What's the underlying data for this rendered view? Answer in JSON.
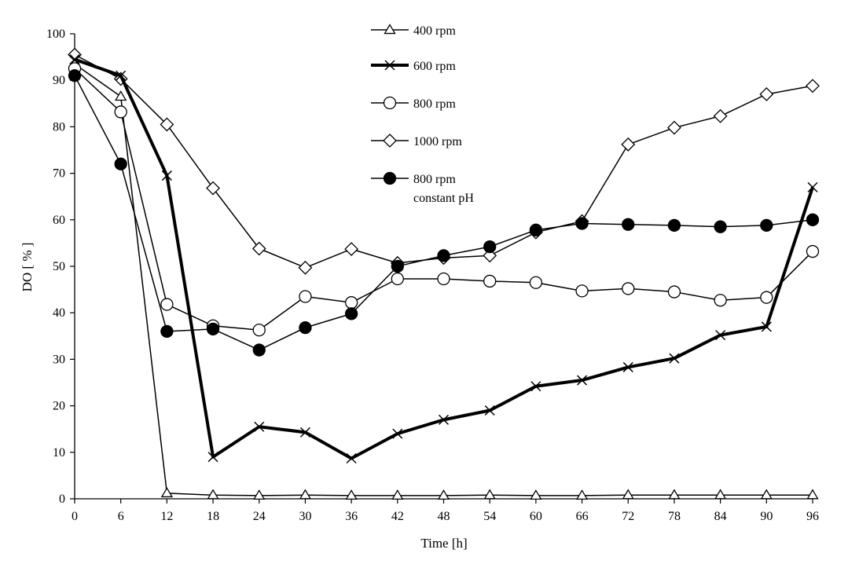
{
  "chart_data": {
    "type": "line",
    "title": "",
    "xlabel": "Time [h]",
    "ylabel": "DO  [ % ]",
    "x": [
      0,
      6,
      12,
      18,
      24,
      30,
      36,
      42,
      48,
      54,
      60,
      66,
      72,
      78,
      84,
      90,
      96
    ],
    "xticks": [
      "0",
      "6",
      "12",
      "18",
      "24",
      "30",
      "36",
      "42",
      "48",
      "54",
      "60",
      "66",
      "72",
      "78",
      "84",
      "90",
      "96"
    ],
    "xlim": [
      0,
      96
    ],
    "ylim": [
      0,
      100
    ],
    "yticks": [
      "0",
      "10",
      "20",
      "30",
      "40",
      "50",
      "60",
      "70",
      "80",
      "90",
      "100"
    ],
    "grid": false,
    "legend_position": "top-center",
    "series": [
      {
        "name": "400 rpm",
        "marker": "triangle-open",
        "line": "thin",
        "color": "#000000",
        "values": [
          93.5,
          86.5,
          1.2,
          0.8,
          0.7,
          0.8,
          0.7,
          0.7,
          0.7,
          0.8,
          0.7,
          0.7,
          0.8,
          0.8,
          0.8,
          0.8,
          0.8
        ]
      },
      {
        "name": "600 rpm",
        "marker": "x",
        "line": "thick",
        "color": "#000000",
        "values": [
          94.5,
          91.0,
          69.5,
          9.0,
          15.5,
          14.3,
          8.7,
          14.0,
          17.0,
          19.0,
          24.2,
          25.5,
          28.3,
          30.2,
          35.2,
          37.0,
          67.0
        ]
      },
      {
        "name": "800 rpm",
        "marker": "circle-open",
        "line": "thin",
        "color": "#000000",
        "values": [
          92.5,
          83.2,
          41.8,
          37.2,
          36.3,
          43.5,
          42.2,
          47.3,
          47.3,
          46.8,
          46.5,
          44.7,
          45.2,
          44.5,
          42.7,
          43.3,
          53.2
        ]
      },
      {
        "name": "1000 rpm",
        "marker": "diamond-open",
        "line": "thin",
        "color": "#000000",
        "values": [
          95.5,
          90.3,
          80.5,
          66.8,
          53.8,
          49.7,
          53.7,
          50.7,
          51.8,
          52.3,
          57.3,
          59.7,
          76.2,
          79.8,
          82.3,
          87.0,
          88.8
        ]
      },
      {
        "name_lines": [
          "800 rpm",
          "constant pH"
        ],
        "marker": "circle-filled",
        "line": "thin",
        "color": "#000000",
        "values": [
          91.0,
          72.0,
          36.0,
          36.5,
          32.0,
          36.8,
          39.8,
          50.0,
          52.3,
          54.2,
          57.8,
          59.2,
          59.0,
          58.8,
          58.5,
          58.8,
          60.0
        ]
      }
    ]
  }
}
